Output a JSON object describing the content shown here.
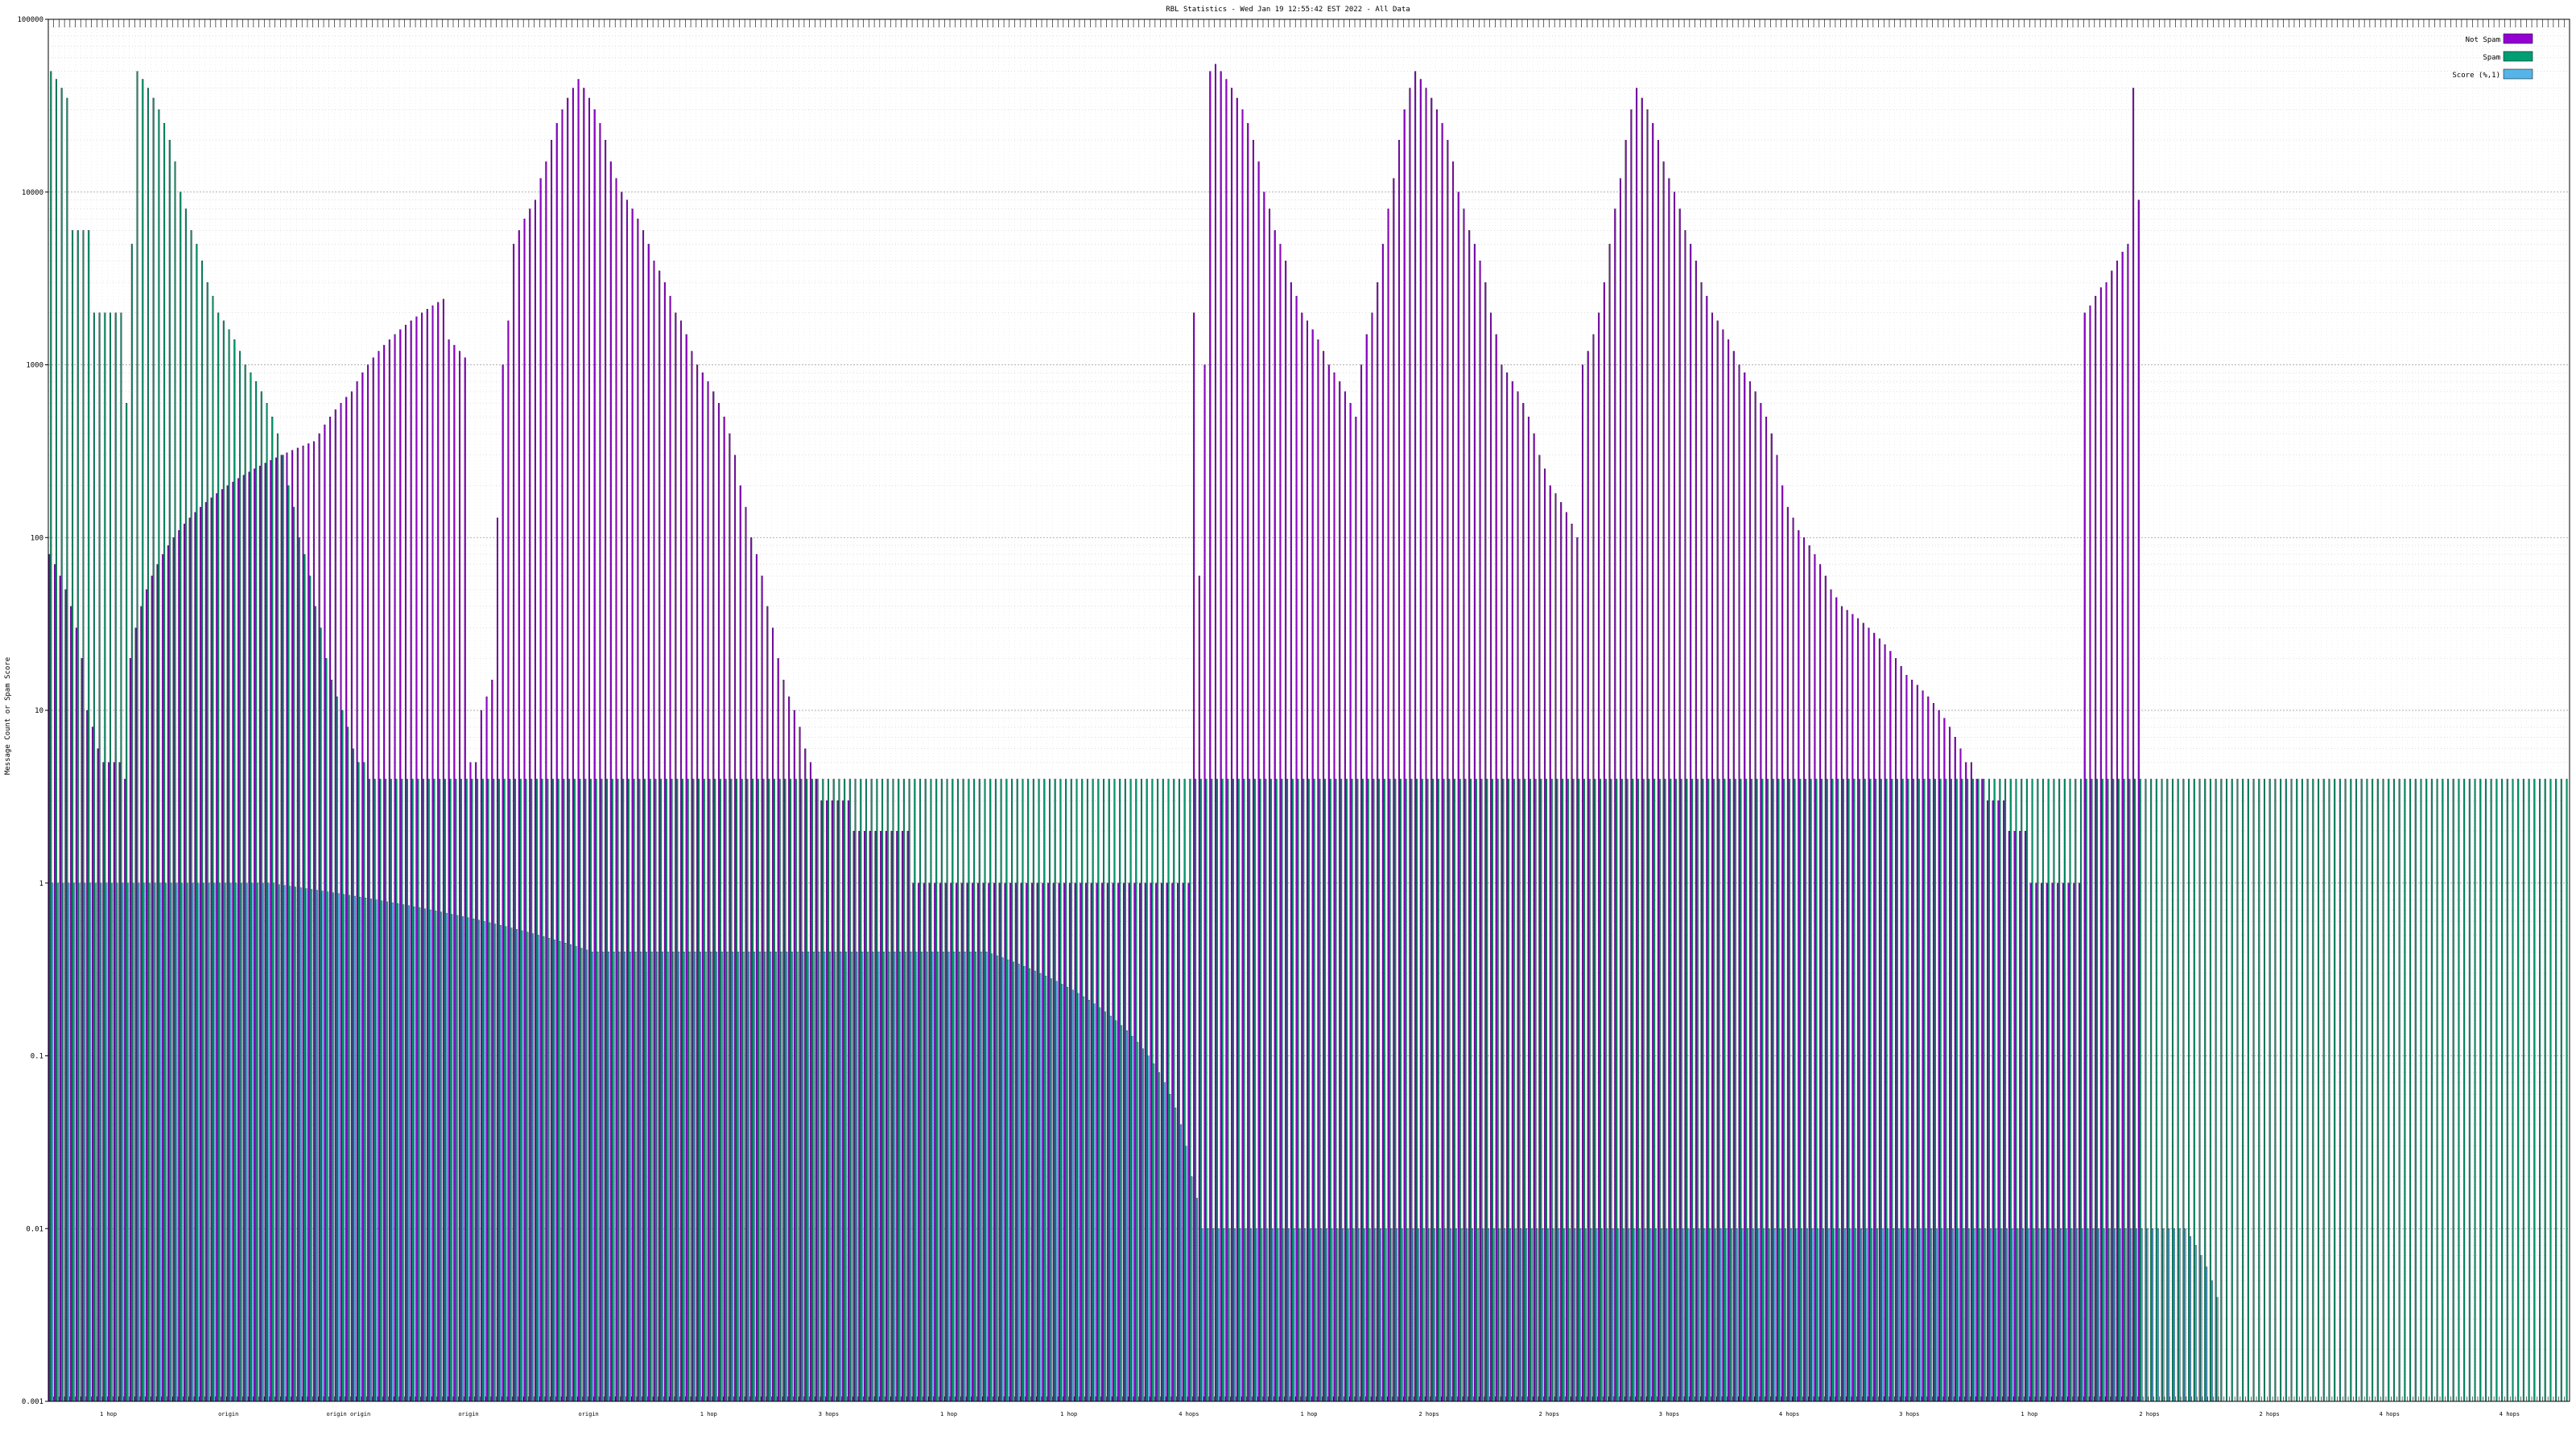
{
  "chart_data": {
    "type": "bar",
    "title": "RBL Statistics - Wed Jan 19 12:55:42 EST 2022 - All Data",
    "ylabel": "Message Count or Spam Score",
    "xlabel": "",
    "yscale": "log",
    "ylim": [
      0.001,
      100000
    ],
    "yticks": [
      "100000",
      "10000",
      "1000",
      "100",
      "10",
      "1",
      "0.1",
      "0.01",
      "0.001"
    ],
    "grid": true,
    "legend_position": "top-right",
    "series": [
      {
        "name": "Not Spam",
        "color": "#9400d3",
        "values": [
          80,
          70,
          60,
          50,
          40,
          30,
          20,
          10,
          8,
          6,
          5,
          5,
          5,
          5,
          4,
          20,
          30,
          40,
          50,
          60,
          70,
          80,
          90,
          100,
          110,
          120,
          130,
          140,
          150,
          160,
          170,
          180,
          190,
          200,
          210,
          220,
          230,
          240,
          250,
          260,
          270,
          280,
          290,
          300,
          310,
          320,
          330,
          340,
          350,
          360,
          400,
          450,
          500,
          550,
          600,
          650,
          700,
          800,
          900,
          1000,
          1100,
          1200,
          1300,
          1400,
          1500,
          1600,
          1700,
          1800,
          1900,
          2000,
          2100,
          2200,
          2300,
          2400,
          1400,
          1300,
          1200,
          1100,
          5,
          5,
          10,
          12,
          15,
          130,
          1000,
          1800,
          5000,
          6000,
          7000,
          8000,
          9000,
          12000,
          15000,
          20000,
          25000,
          30000,
          35000,
          40000,
          45000,
          40000,
          35000,
          30000,
          25000,
          20000,
          15000,
          12000,
          10000,
          9000,
          8000,
          7000,
          6000,
          5000,
          4000,
          3500,
          3000,
          2500,
          2000,
          1800,
          1500,
          1200,
          1000,
          900,
          800,
          700,
          600,
          500,
          400,
          300,
          200,
          150,
          100,
          80,
          60,
          40,
          30,
          20,
          15,
          12,
          10,
          8,
          6,
          5,
          4,
          3,
          3,
          3,
          3,
          3,
          3,
          2,
          2,
          2,
          2,
          2,
          2,
          2,
          2,
          2,
          2,
          2,
          1,
          1,
          1,
          1,
          1,
          1,
          1,
          1,
          1,
          1,
          1,
          1,
          1,
          1,
          1,
          1,
          1,
          1,
          1,
          1,
          1,
          1,
          1,
          1,
          1,
          1,
          1,
          1,
          1,
          1,
          1,
          1,
          1,
          1,
          1,
          1,
          1,
          1,
          1,
          1,
          1,
          1,
          1,
          1,
          1,
          1,
          1,
          1,
          1,
          1,
          1,
          1,
          2000,
          60,
          1000,
          50000,
          55000,
          50000,
          45000,
          40000,
          35000,
          30000,
          25000,
          20000,
          15000,
          10000,
          8000,
          6000,
          5000,
          4000,
          3000,
          2500,
          2000,
          1800,
          1600,
          1400,
          1200,
          1000,
          900,
          800,
          700,
          600,
          500,
          1000,
          1500,
          2000,
          3000,
          5000,
          8000,
          12000,
          20000,
          30000,
          40000,
          50000,
          45000,
          40000,
          35000,
          30000,
          25000,
          20000,
          15000,
          10000,
          8000,
          6000,
          5000,
          4000,
          3000,
          2000,
          1500,
          1000,
          900,
          800,
          700,
          600,
          500,
          400,
          300,
          250,
          200,
          180,
          160,
          140,
          120,
          100,
          1000,
          1200,
          1500,
          2000,
          3000,
          5000,
          8000,
          12000,
          20000,
          30000,
          40000,
          35000,
          30000,
          25000,
          20000,
          15000,
          12000,
          10000,
          8000,
          6000,
          5000,
          4000,
          3000,
          2500,
          2000,
          1800,
          1600,
          1400,
          1200,
          1000,
          900,
          800,
          700,
          600,
          500,
          400,
          300,
          200,
          150,
          130,
          110,
          100,
          90,
          80,
          70,
          60,
          50,
          45,
          40,
          38,
          36,
          34,
          32,
          30,
          28,
          26,
          24,
          22,
          20,
          18,
          16,
          15,
          14,
          13,
          12,
          11,
          10,
          9,
          8,
          7,
          6,
          5,
          5,
          4,
          4,
          3,
          3,
          3,
          3,
          2,
          2,
          2,
          2,
          1,
          1,
          1,
          1,
          1,
          1,
          1,
          1,
          1,
          1,
          2000,
          2200,
          2500,
          2800,
          3000,
          3500,
          4000,
          4500,
          5000,
          40000,
          9000
        ]
      },
      {
        "name": "Spam",
        "color": "#009e73",
        "values": [
          50000,
          45000,
          40000,
          35000,
          6000,
          6000,
          6000,
          6000,
          2000,
          2000,
          2000,
          2000,
          2000,
          2000,
          600,
          5000,
          50000,
          45000,
          40000,
          35000,
          30000,
          25000,
          20000,
          15000,
          10000,
          8000,
          6000,
          5000,
          4000,
          3000,
          2500,
          2000,
          1800,
          1600,
          1400,
          1200,
          1000,
          900,
          800,
          700,
          600,
          500,
          400,
          300,
          200,
          150,
          100,
          80,
          60,
          40,
          30,
          20,
          15,
          12,
          10,
          8,
          6,
          5,
          5,
          4,
          4,
          4,
          4,
          4,
          4,
          4,
          4,
          4,
          4,
          4,
          4,
          4,
          4,
          4,
          4,
          4,
          4,
          4,
          4,
          4,
          4,
          4,
          4,
          4,
          4,
          4,
          4,
          4,
          4,
          4,
          4,
          4,
          4,
          4,
          4,
          4,
          4,
          4,
          4,
          4,
          4,
          4,
          4,
          4,
          4,
          4,
          4,
          4,
          4,
          4,
          4,
          4,
          4,
          4,
          4,
          4,
          4,
          4,
          4,
          4,
          4,
          4,
          4,
          4,
          4,
          4,
          4,
          4,
          4,
          4,
          4,
          4,
          4,
          4,
          4,
          4,
          4,
          4,
          4,
          4,
          4,
          4,
          4,
          4,
          4,
          4,
          4,
          4,
          4,
          4,
          4,
          4,
          4,
          4,
          4,
          4,
          4,
          4,
          4,
          4,
          4,
          4,
          4,
          4,
          4,
          4,
          4,
          4,
          4,
          4,
          4,
          4,
          4,
          4,
          4,
          4,
          4,
          4,
          4,
          4,
          4,
          4,
          4,
          4,
          4,
          4,
          4,
          4,
          4,
          4,
          4,
          4,
          4,
          4,
          4,
          4,
          4,
          4,
          4,
          4,
          4,
          4,
          4,
          4,
          4,
          4,
          4,
          4,
          4,
          4,
          4,
          4,
          4,
          4,
          4,
          4,
          4,
          4,
          4,
          4,
          4,
          4,
          4,
          4,
          4,
          4,
          4,
          4,
          4,
          4,
          4,
          4,
          4,
          4,
          4,
          4,
          4,
          4,
          4,
          4,
          4,
          4,
          4,
          4,
          4,
          4,
          4,
          4,
          4,
          4,
          4,
          4,
          4,
          4,
          4,
          4,
          4,
          4,
          4,
          4,
          4,
          4,
          4,
          4,
          4,
          4,
          4,
          4,
          4,
          4,
          4,
          4,
          4,
          4,
          4,
          4,
          4,
          4,
          4,
          4,
          4,
          4,
          4,
          4,
          4,
          4,
          4,
          4,
          4,
          4,
          4,
          4,
          4,
          4,
          4,
          4,
          4,
          4,
          4,
          4,
          4,
          4,
          4,
          4,
          4,
          4,
          4,
          4,
          4,
          4,
          4,
          4,
          4,
          4,
          4,
          4,
          4,
          4,
          4,
          4,
          4,
          4,
          4,
          4,
          4,
          4,
          4,
          4,
          4,
          4,
          4,
          4,
          4,
          4,
          4,
          4,
          4,
          4,
          4,
          4,
          4,
          4,
          4,
          4,
          4,
          4,
          4,
          4,
          4,
          4,
          4,
          4,
          4,
          4,
          4,
          4,
          4,
          4,
          4,
          4,
          4,
          4,
          4,
          4,
          4,
          4,
          4,
          4,
          4,
          4,
          4,
          4,
          4,
          4,
          4,
          4,
          4,
          4,
          4,
          4,
          4,
          4,
          4,
          4,
          4,
          4,
          4,
          4,
          4,
          4,
          4,
          4,
          4,
          4,
          4,
          4,
          4,
          4,
          4,
          4,
          4,
          4,
          4,
          4,
          4,
          4,
          4,
          4,
          4,
          4,
          4,
          4,
          4,
          4,
          4,
          4,
          4,
          4,
          4,
          4,
          4,
          4,
          4,
          4,
          4,
          4,
          4,
          4,
          4,
          4,
          4,
          4,
          4,
          4,
          4,
          4,
          4,
          4,
          4,
          4,
          4,
          4,
          4,
          4,
          4,
          4,
          4,
          4,
          4,
          4,
          4,
          4,
          4,
          4,
          4,
          4,
          4,
          4,
          4,
          4,
          4,
          4,
          4,
          4,
          4,
          4,
          4
        ]
      },
      {
        "name": "Score (%,1)",
        "color": "#56b4e9",
        "values": [
          1,
          1,
          1,
          1,
          1,
          1,
          1,
          1,
          1,
          1,
          1,
          1,
          1,
          1,
          1,
          1,
          1,
          1,
          1,
          1,
          1,
          1,
          1,
          1,
          1,
          1,
          1,
          1,
          1,
          1,
          1,
          1,
          1,
          1,
          1,
          1,
          1,
          1,
          1,
          1,
          1,
          1,
          0.98,
          0.97,
          0.96,
          0.95,
          0.94,
          0.93,
          0.92,
          0.91,
          0.9,
          0.89,
          0.88,
          0.87,
          0.86,
          0.85,
          0.84,
          0.83,
          0.82,
          0.81,
          0.8,
          0.79,
          0.78,
          0.77,
          0.76,
          0.75,
          0.74,
          0.73,
          0.72,
          0.71,
          0.7,
          0.69,
          0.68,
          0.67,
          0.66,
          0.65,
          0.64,
          0.63,
          0.62,
          0.61,
          0.6,
          0.59,
          0.58,
          0.57,
          0.56,
          0.55,
          0.54,
          0.53,
          0.52,
          0.51,
          0.5,
          0.49,
          0.48,
          0.47,
          0.46,
          0.45,
          0.44,
          0.43,
          0.42,
          0.41,
          0.4,
          0.4,
          0.4,
          0.4,
          0.4,
          0.4,
          0.4,
          0.4,
          0.4,
          0.4,
          0.4,
          0.4,
          0.4,
          0.4,
          0.4,
          0.4,
          0.4,
          0.4,
          0.4,
          0.4,
          0.4,
          0.4,
          0.4,
          0.4,
          0.4,
          0.4,
          0.4,
          0.4,
          0.4,
          0.4,
          0.4,
          0.4,
          0.4,
          0.4,
          0.4,
          0.4,
          0.4,
          0.4,
          0.4,
          0.4,
          0.4,
          0.4,
          0.4,
          0.4,
          0.4,
          0.4,
          0.4,
          0.4,
          0.4,
          0.4,
          0.4,
          0.4,
          0.4,
          0.4,
          0.4,
          0.4,
          0.4,
          0.4,
          0.4,
          0.4,
          0.4,
          0.4,
          0.4,
          0.4,
          0.4,
          0.4,
          0.4,
          0.4,
          0.4,
          0.4,
          0.4,
          0.4,
          0.4,
          0.4,
          0.39,
          0.38,
          0.37,
          0.36,
          0.35,
          0.34,
          0.33,
          0.32,
          0.31,
          0.3,
          0.29,
          0.28,
          0.27,
          0.26,
          0.25,
          0.24,
          0.23,
          0.22,
          0.21,
          0.2,
          0.19,
          0.18,
          0.17,
          0.16,
          0.15,
          0.14,
          0.13,
          0.12,
          0.11,
          0.1,
          0.09,
          0.08,
          0.07,
          0.06,
          0.05,
          0.04,
          0.03,
          0.02,
          0.015,
          0.01,
          0.01,
          0.01,
          0.01,
          0.01,
          0.01,
          0.01,
          0.01,
          0.01,
          0.01,
          0.01,
          0.01,
          0.01,
          0.01,
          0.01,
          0.01,
          0.01,
          0.01,
          0.01,
          0.01,
          0.01,
          0.01,
          0.01,
          0.01,
          0.01,
          0.01,
          0.01,
          0.01,
          0.01,
          0.01,
          0.01,
          0.01,
          0.01,
          0.01,
          0.01,
          0.01,
          0.01,
          0.01,
          0.01,
          0.01,
          0.01,
          0.01,
          0.01,
          0.01,
          0.01,
          0.01,
          0.01,
          0.01,
          0.01,
          0.01,
          0.01,
          0.01,
          0.01,
          0.01,
          0.01,
          0.01,
          0.01,
          0.01,
          0.01,
          0.01,
          0.01,
          0.01,
          0.01,
          0.01,
          0.01,
          0.01,
          0.01,
          0.01,
          0.01,
          0.01,
          0.01,
          0.01,
          0.01,
          0.01,
          0.01,
          0.01,
          0.01,
          0.01,
          0.01,
          0.01,
          0.01,
          0.01,
          0.01,
          0.01,
          0.01,
          0.01,
          0.01,
          0.01,
          0.01,
          0.01,
          0.01,
          0.01,
          0.01,
          0.01,
          0.01,
          0.01,
          0.01,
          0.01,
          0.01,
          0.01,
          0.01,
          0.01,
          0.01,
          0.01,
          0.01,
          0.01,
          0.01,
          0.01,
          0.01,
          0.01,
          0.01,
          0.01,
          0.01,
          0.01,
          0.01,
          0.01,
          0.01,
          0.01,
          0.01,
          0.01,
          0.01,
          0.01,
          0.01,
          0.01,
          0.01,
          0.01,
          0.01,
          0.01,
          0.01,
          0.01,
          0.01,
          0.01,
          0.01,
          0.01,
          0.01,
          0.01,
          0.01,
          0.01,
          0.01,
          0.01,
          0.01,
          0.01,
          0.01,
          0.01,
          0.01,
          0.01,
          0.01,
          0.01,
          0.01,
          0.01,
          0.01,
          0.01,
          0.01,
          0.01,
          0.01,
          0.01,
          0.01,
          0.01,
          0.01,
          0.01,
          0.01,
          0.01,
          0.01,
          0.01,
          0.01,
          0.01,
          0.01,
          0.01,
          0.01,
          0.01,
          0.01,
          0.01,
          0.01,
          0.01,
          0.01,
          0.01,
          0.01,
          0.01,
          0.01,
          0.01,
          0.01,
          0.01,
          0.01,
          0.009,
          0.008,
          0.007,
          0.006,
          0.005,
          0.004
        ]
      }
    ],
    "category_labels_sample": [
      "1 hop",
      "origin",
      "origin origin",
      "origin",
      "origin",
      "1 hop",
      "3 hops",
      "1 hop",
      "1 hop",
      "4 hops",
      "1 hop",
      "2 hops",
      "2 hops",
      "3 hops",
      "4 hops",
      "3 hops",
      "1 hop",
      "2 hops",
      "2 hops",
      "4 hops",
      "4 hops"
    ]
  }
}
